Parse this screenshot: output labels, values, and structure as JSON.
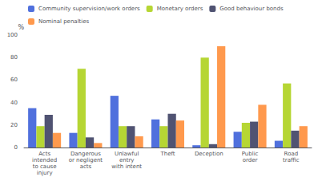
{
  "chart_data": {
    "type": "bar",
    "categories": [
      "Acts\nintended\nto cause\ninjury",
      "Dangerous\nor negligent\nacts",
      "Unlawful\nentry\nwith intent",
      "Theft",
      "Deception",
      "Public\norder",
      "Road\ntraffic"
    ],
    "series": [
      {
        "name": "Community supervision/work orders",
        "values": [
          35,
          13,
          46,
          25,
          2,
          14,
          6
        ]
      },
      {
        "name": "Monetary orders",
        "values": [
          19,
          70,
          19,
          19,
          80,
          22,
          57
        ]
      },
      {
        "name": "Good behaviour bonds",
        "values": [
          29,
          9,
          19,
          30,
          3,
          23,
          15
        ]
      },
      {
        "name": "Nominal penalties",
        "values": [
          13,
          4,
          10,
          24,
          90,
          38,
          19
        ]
      }
    ],
    "ylabel": "%",
    "ylim": [
      0,
      100
    ],
    "yticks": [
      0,
      20,
      40,
      60,
      80,
      100
    ],
    "grid": false,
    "legend": "upper left"
  }
}
